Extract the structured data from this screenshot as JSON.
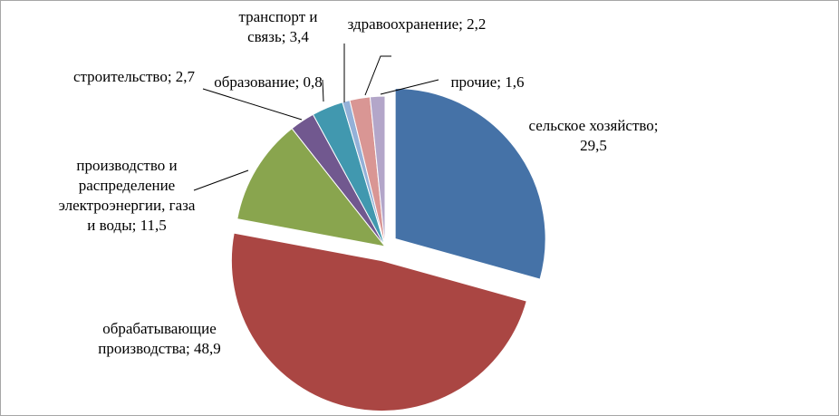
{
  "chart_data": {
    "type": "pie",
    "categories": [
      "сельское хозяйство",
      "обрабатывающие производства",
      "производство и распределение электроэнергии, газа и воды",
      "строительство",
      "транспорт и связь",
      "образование",
      "здравоохранение",
      "прочие"
    ],
    "values": [
      29.5,
      48.9,
      11.5,
      2.7,
      3.4,
      0.8,
      2.2,
      1.6
    ],
    "value_labels": [
      "сельское хозяйство; 29,5",
      "обрабатывающие производства; 48,9",
      "производство и распределение электроэнергии, газа и воды; 11,5",
      "строительство; 2,7",
      "транспорт и связь; 3,4",
      "образование; 0,8",
      "здравоохранение; 2,2",
      "прочие; 1,6"
    ],
    "colors": [
      "#4572a7",
      "#aa4643",
      "#89a54e",
      "#71588f",
      "#4198af",
      "#94b1d8",
      "#d99694",
      "#b3a6c9"
    ]
  }
}
